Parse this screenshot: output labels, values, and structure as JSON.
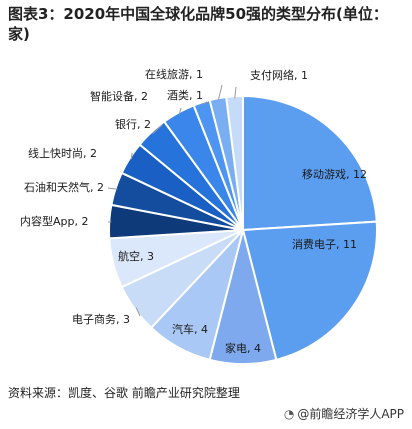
{
  "header": {
    "title": "图表3：2020年中国全球化品牌50强的类型分布(单位：家)"
  },
  "chart_data": {
    "type": "pie",
    "title": "图表3：2020年中国全球化品牌50强的类型分布(单位：家)",
    "unit": "家",
    "slices": [
      {
        "label": "移动游戏",
        "value": 12,
        "color": "#5b9ef0"
      },
      {
        "label": "消费电子",
        "value": 11,
        "color": "#5b9ef0"
      },
      {
        "label": "家电",
        "value": 4,
        "color": "#7ea9ee"
      },
      {
        "label": "汽车",
        "value": 4,
        "color": "#a9c8f5"
      },
      {
        "label": "电子商务",
        "value": 3,
        "color": "#c8dbf7"
      },
      {
        "label": "航空",
        "value": 3,
        "color": "#dbe7fa"
      },
      {
        "label": "内容型App",
        "value": 2,
        "color": "#0f3a7a"
      },
      {
        "label": "石油和天然气",
        "value": 2,
        "color": "#154d9e"
      },
      {
        "label": "线上快时尚",
        "value": 2,
        "color": "#1a5fc4"
      },
      {
        "label": "银行",
        "value": 2,
        "color": "#2673dc"
      },
      {
        "label": "智能设备",
        "value": 2,
        "color": "#3a86ea"
      },
      {
        "label": "酒类",
        "value": 1,
        "color": "#4d95f0"
      },
      {
        "label": "在线旅游",
        "value": 1,
        "color": "#7aaef3"
      },
      {
        "label": "支付网络",
        "value": 1,
        "color": "#c6dbf7"
      }
    ]
  },
  "footer": {
    "source": "资料来源：凯度、谷歌 前瞻产业研究院整理",
    "brand": "@前瞻经济学人APP"
  }
}
